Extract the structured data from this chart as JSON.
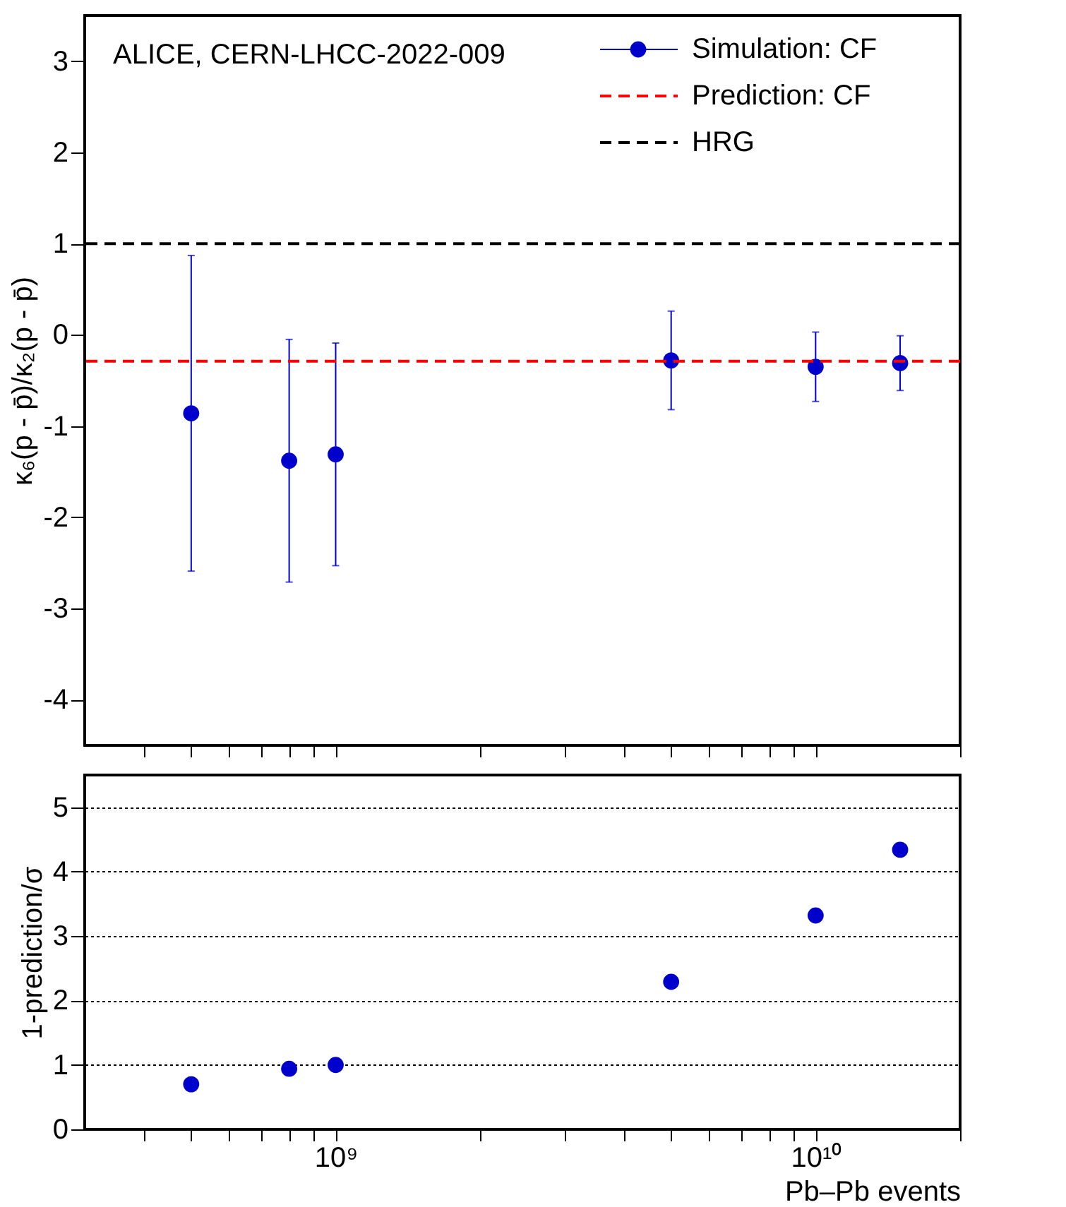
{
  "chart_data": [
    {
      "type": "scatter",
      "ylabel": "κ₆(p - p̄)/κ₂(p - p̄)",
      "annotations": [
        "ALICE, CERN-LHCC-2022-009"
      ],
      "x": [
        500000000.0,
        800000000.0,
        1000000000.0,
        5000000000.0,
        10000000000.0,
        15000000000.0
      ],
      "series": [
        {
          "name": "Simulation: CF",
          "color": "#0000cc",
          "values": [
            -0.86,
            -1.38,
            -1.31,
            -0.28,
            -0.35,
            -0.31
          ],
          "errors": [
            1.73,
            1.33,
            1.22,
            0.54,
            0.38,
            0.3
          ]
        }
      ],
      "ref_lines": [
        {
          "axis": "y",
          "value": -0.29,
          "label": "Prediction: CF",
          "color": "#ff0000",
          "line_style": "dashed"
        },
        {
          "axis": "y",
          "value": 1,
          "label": "HRG",
          "color": "#000000",
          "line_style": "dashed"
        }
      ],
      "xlim": [
        300000000.0,
        20000000000.0
      ],
      "ylim": [
        -4.5,
        3.5
      ],
      "yticks": [
        -4,
        -3,
        -2,
        -1,
        0,
        1,
        2,
        3
      ],
      "xticks": [
        {
          "value": 400000000.0,
          "label": null
        },
        {
          "value": 500000000.0,
          "label": null
        },
        {
          "value": 600000000.0,
          "label": null
        },
        {
          "value": 700000000.0,
          "label": null
        },
        {
          "value": 800000000.0,
          "label": null
        },
        {
          "value": 900000000.0,
          "label": null
        },
        {
          "value": 1000000000.0,
          "label": null
        },
        {
          "value": 2000000000.0,
          "label": null
        },
        {
          "value": 3000000000.0,
          "label": null
        },
        {
          "value": 4000000000.0,
          "label": null
        },
        {
          "value": 5000000000.0,
          "label": null
        },
        {
          "value": 6000000000.0,
          "label": null
        },
        {
          "value": 7000000000.0,
          "label": null
        },
        {
          "value": 8000000000.0,
          "label": null
        },
        {
          "value": 9000000000.0,
          "label": null
        },
        {
          "value": 10000000000.0,
          "label": null
        },
        {
          "value": 20000000000.0,
          "label": null
        }
      ],
      "log": "x",
      "marker": "circle",
      "legend": "top right",
      "tick_labels": "y",
      "grid": false
    },
    {
      "type": "scatter",
      "ylabel": "1-prediction/σ",
      "xlabel": "Pb–Pb events",
      "x": [
        500000000.0,
        800000000.0,
        1000000000.0,
        5000000000.0,
        10000000000.0,
        15000000000.0
      ],
      "series": [
        {
          "color": "#0000cc",
          "values": [
            0.7,
            0.94,
            1.0,
            2.29,
            3.32,
            4.34
          ]
        }
      ],
      "xlim": [
        300000000.0,
        20000000000.0
      ],
      "ylim": [
        0,
        5.5
      ],
      "yticks": [
        0,
        1,
        2,
        3,
        4,
        5
      ],
      "xticks": [
        {
          "value": 400000000.0,
          "label": null
        },
        {
          "value": 500000000.0,
          "label": null
        },
        {
          "value": 600000000.0,
          "label": null
        },
        {
          "value": 700000000.0,
          "label": null
        },
        {
          "value": 800000000.0,
          "label": null
        },
        {
          "value": 900000000.0,
          "label": null
        },
        {
          "value": 1000000000.0,
          "label": "10⁹"
        },
        {
          "value": 2000000000.0,
          "label": null
        },
        {
          "value": 3000000000.0,
          "label": null
        },
        {
          "value": 4000000000.0,
          "label": null
        },
        {
          "value": 5000000000.0,
          "label": null
        },
        {
          "value": 6000000000.0,
          "label": null
        },
        {
          "value": 7000000000.0,
          "label": null
        },
        {
          "value": 8000000000.0,
          "label": null
        },
        {
          "value": 9000000000.0,
          "label": null
        },
        {
          "value": 10000000000.0,
          "label": "10¹⁰"
        },
        {
          "value": 20000000000.0,
          "label": null
        }
      ],
      "log": "x",
      "marker": "circle",
      "grid": "y"
    }
  ]
}
